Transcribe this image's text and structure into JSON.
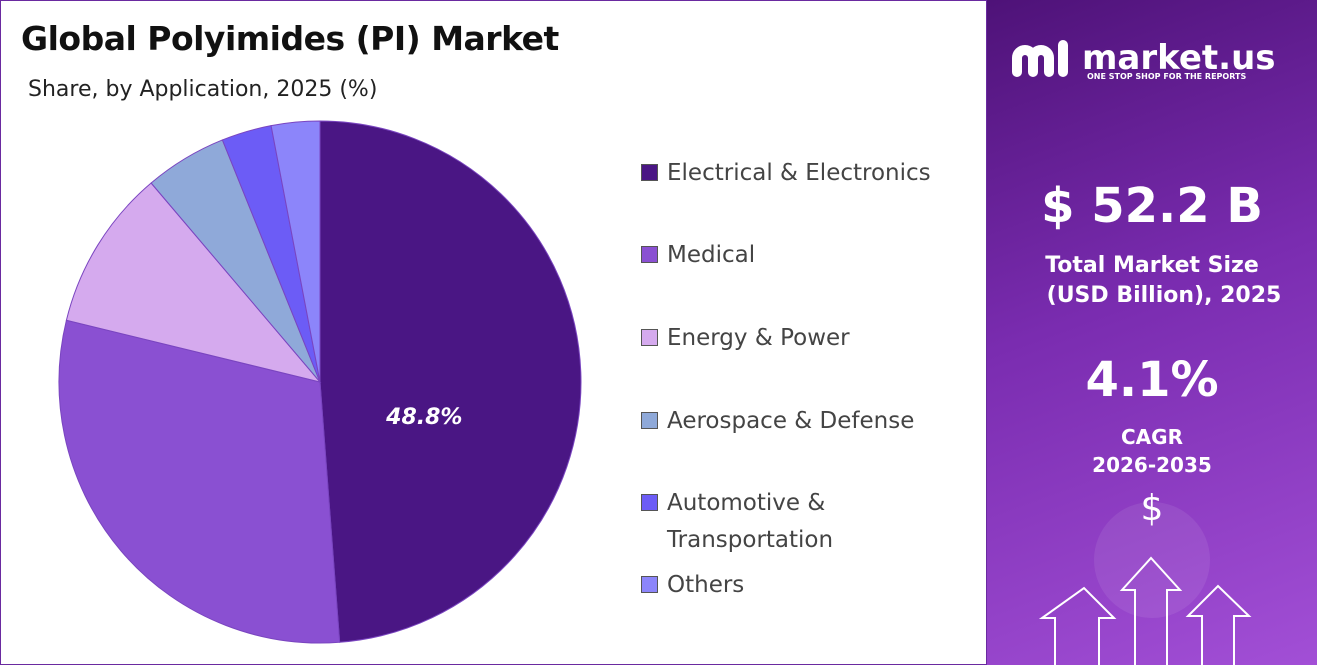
{
  "chart_data": {
    "type": "pie",
    "title": "Global Polyimides (PI) Market",
    "subtitle": "Share, by Application, 2025 (%)",
    "categories": [
      "Electrical & Electronics",
      "Medical",
      "Energy & Power",
      "Aerospace & Defense",
      "Automotive & Transportation",
      "Others"
    ],
    "values": [
      48.8,
      30.0,
      10.0,
      5.1,
      3.1,
      3.0
    ],
    "value_labels": [
      "48.8%",
      null,
      null,
      null,
      null,
      null
    ],
    "colors": [
      "#4a1684",
      "#8a50d2",
      "#d5aaee",
      "#8fa9d9",
      "#6c5cf6",
      "#8c85fa"
    ],
    "legend": "right"
  },
  "side_panel": {
    "brand": "market.us",
    "tagline": "ONE STOP SHOP FOR THE REPORTS",
    "market_size": "$ 52.2 B",
    "market_size_label": [
      "Total Market Size",
      "(USD Billion), 2025"
    ],
    "cagr": "4.1%",
    "cagr_label": [
      "CAGR",
      "2026-2035"
    ]
  }
}
